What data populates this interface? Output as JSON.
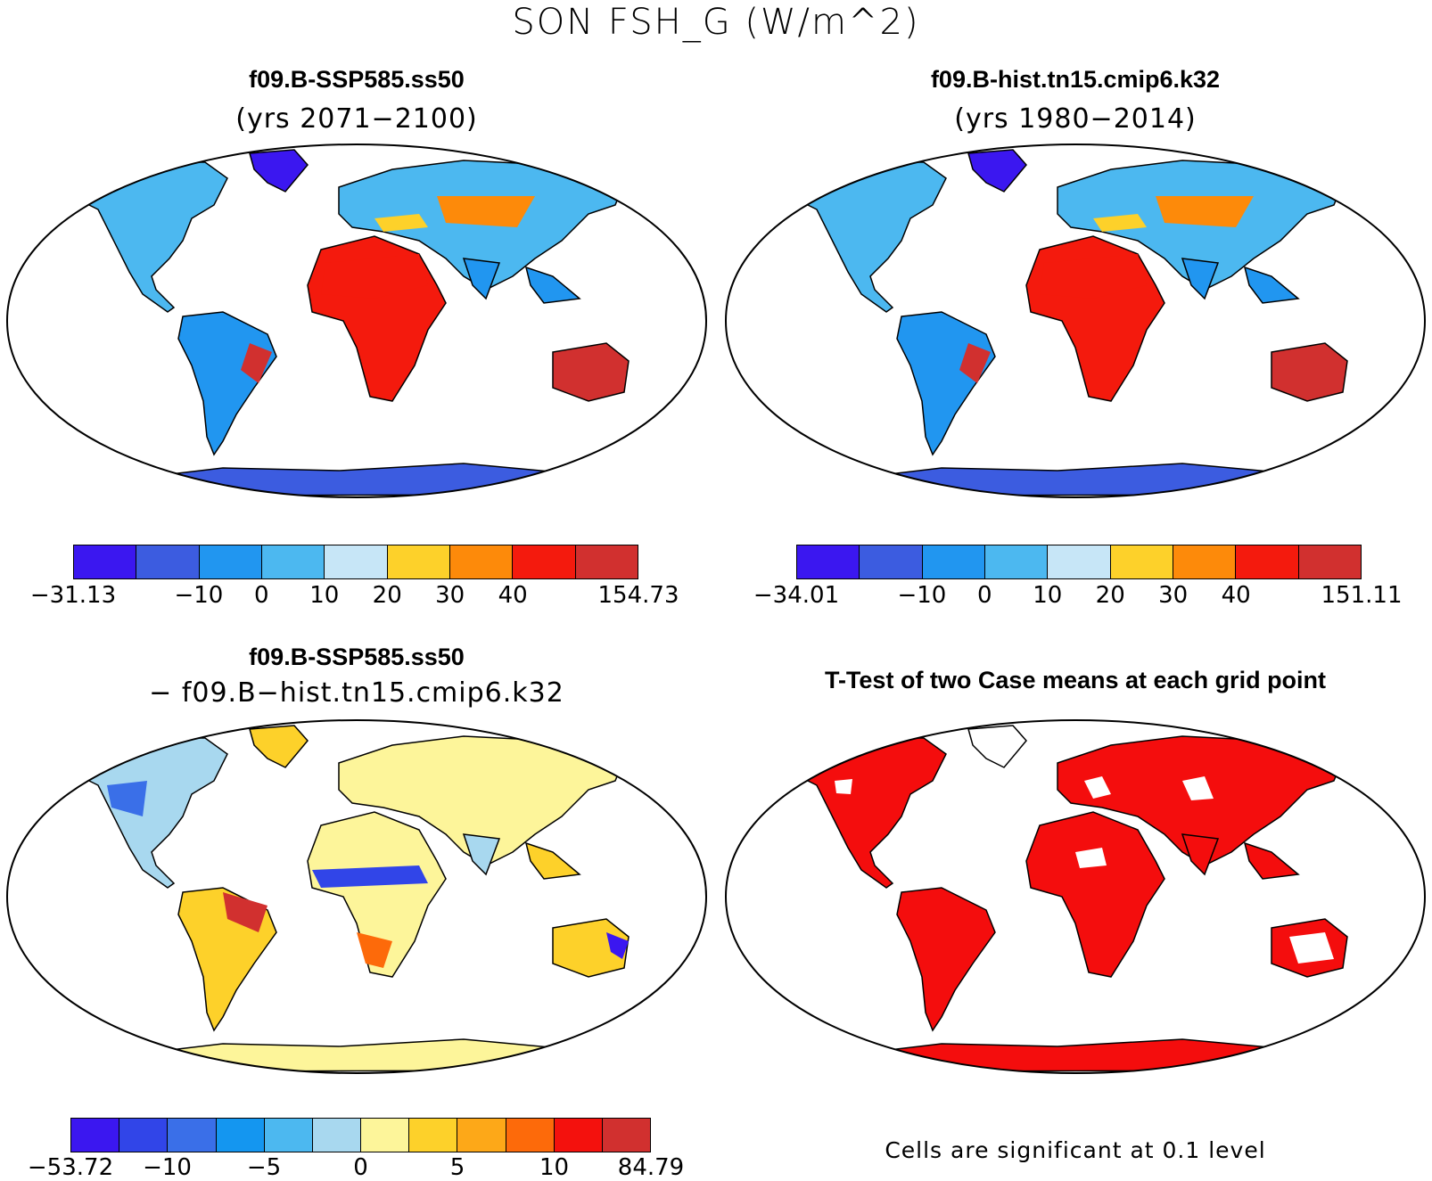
{
  "figure": {
    "title": "SON FSH_G (W/m^2)"
  },
  "panels": [
    {
      "title": "f09.B-SSP585.ss50",
      "subtitle": "(yrs 2071−2100)",
      "colorbar": {
        "colors": [
          "#3b17f0",
          "#3c5ce0",
          "#2196f0",
          "#4cb8f0",
          "#c7e6f7",
          "#fdd12a",
          "#fd8a0a",
          "#f41a0d",
          "#d1302f"
        ],
        "labels": [
          "−31.13",
          "−10",
          "0",
          "10",
          "20",
          "30",
          "40",
          "154.73"
        ]
      }
    },
    {
      "title": "f09.B-hist.tn15.cmip6.k32",
      "subtitle": "(yrs 1980−2014)",
      "colorbar": {
        "colors": [
          "#3b17f0",
          "#3c5ce0",
          "#2196f0",
          "#4cb8f0",
          "#c7e6f7",
          "#fdd12a",
          "#fd8a0a",
          "#f41a0d",
          "#d1302f"
        ],
        "labels": [
          "−34.01",
          "−10",
          "0",
          "10",
          "20",
          "30",
          "40",
          "151.11"
        ]
      }
    },
    {
      "title": "f09.B-SSP585.ss50",
      "subtitle": "− f09.B−hist.tn15.cmip6.k32",
      "colorbar": {
        "colors": [
          "#3b17f0",
          "#3145e8",
          "#3a6fe8",
          "#1496f0",
          "#4cb8f0",
          "#a8d8ef",
          "#fdf59a",
          "#fdd12a",
          "#fda818",
          "#fd6a0a",
          "#f4110d",
          "#d1302f"
        ],
        "labels": [
          "−53.72",
          "−10",
          "−5",
          "0",
          "5",
          "10",
          "84.79"
        ]
      }
    },
    {
      "title": "T-Test of two Case means at each grid point",
      "note": "Cells are significant at 0.1 level"
    }
  ]
}
